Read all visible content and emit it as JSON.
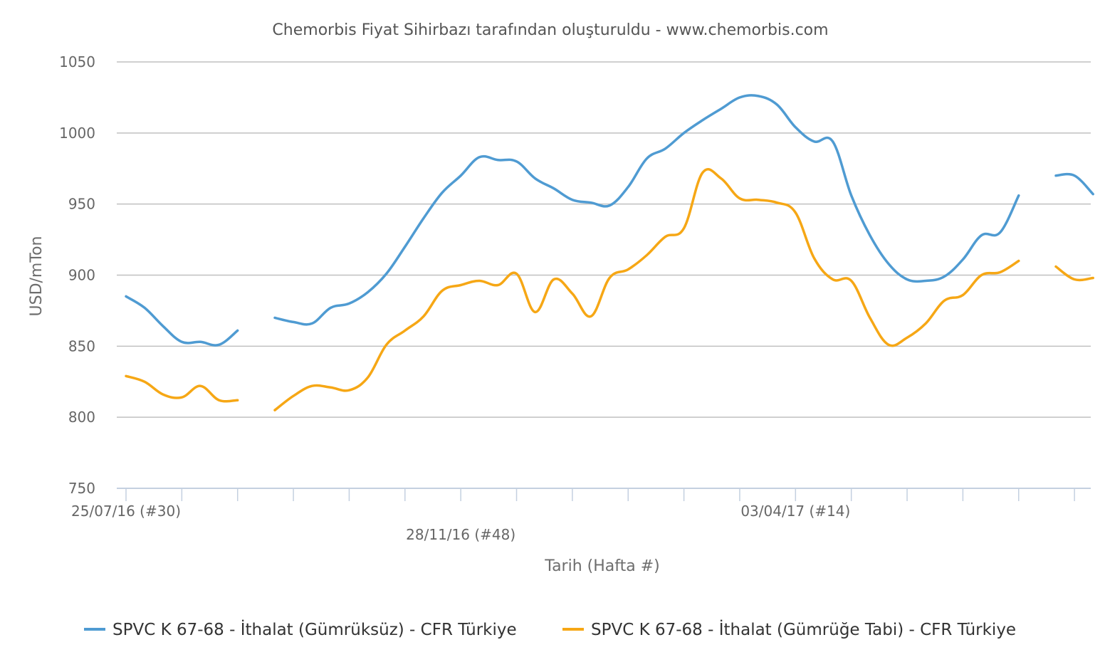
{
  "chart_data": {
    "type": "line",
    "title": "Chemorbis Fiyat Sihirbazı tarafından oluşturuldu - www.chemorbis.com",
    "xlabel": "Tarih (Hafta #)",
    "ylabel": "USD/mTon",
    "ylim": [
      750,
      1050
    ],
    "yticks": [
      750,
      800,
      850,
      900,
      950,
      1000,
      1050
    ],
    "grid": true,
    "legend_position": "bottom",
    "week_count": 52,
    "x_tick_labels": [
      {
        "week_index": 0,
        "label": "25/07/16 (#30)",
        "row": 0
      },
      {
        "week_index": 18,
        "label": "28/11/16 (#48)",
        "row": 1
      },
      {
        "week_index": 36,
        "label": "03/04/17 (#14)",
        "row": 0
      }
    ],
    "series": [
      {
        "name": "SPVC K 67-68 - İthalat (Gümrüksüz) - CFR Türkiye",
        "color": "#4f9bd2",
        "values": [
          885,
          877,
          864,
          853,
          853,
          851,
          861,
          null,
          870,
          867,
          866,
          877,
          880,
          888,
          901,
          920,
          940,
          958,
          970,
          983,
          981,
          980,
          968,
          961,
          953,
          951,
          949,
          962,
          982,
          989,
          1000,
          1009,
          1017,
          1025,
          1026,
          1020,
          1004,
          994,
          994,
          956,
          928,
          908,
          897,
          896,
          899,
          911,
          928,
          930,
          956,
          null,
          970,
          970,
          957
        ]
      },
      {
        "name": "SPVC K 67-68 - İthalat (Gümrüğe Tabi) - CFR Türkiye",
        "color": "#f6a715",
        "values": [
          829,
          825,
          816,
          814,
          822,
          812,
          812,
          null,
          805,
          815,
          822,
          821,
          819,
          828,
          851,
          861,
          871,
          889,
          893,
          896,
          893,
          901,
          874,
          897,
          887,
          871,
          898,
          904,
          914,
          927,
          933,
          972,
          968,
          954,
          953,
          951,
          944,
          912,
          897,
          896,
          870,
          851,
          856,
          866,
          882,
          886,
          900,
          902,
          910,
          null,
          906,
          897,
          898
        ]
      }
    ]
  }
}
